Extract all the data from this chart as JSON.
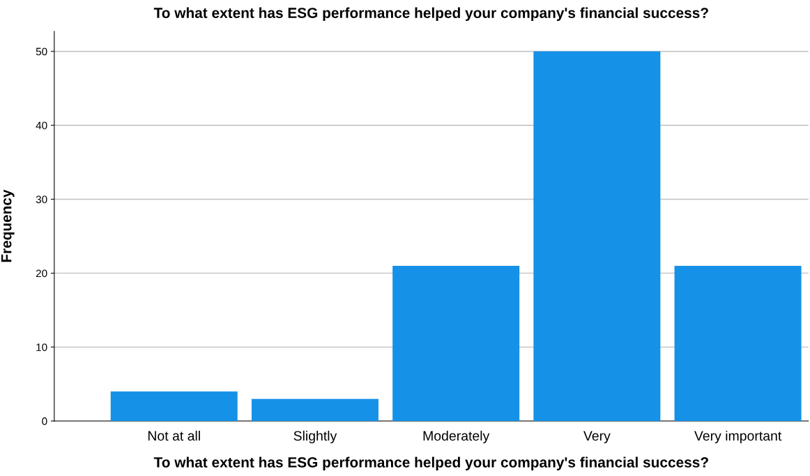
{
  "chart_data": {
    "type": "bar",
    "title": "To what extent has ESG performance helped your company's financial success?",
    "xlabel": "To what extent has ESG performance helped your company's financial success?",
    "ylabel": "Frequency",
    "categories": [
      "Not at all",
      "Slightly",
      "Moderately",
      "Very",
      "Very important"
    ],
    "values": [
      4,
      3,
      21,
      50,
      21
    ],
    "color": "#1591e8",
    "ylim": [
      0,
      52.7
    ],
    "yticks": [
      0,
      10,
      20,
      30,
      40,
      50
    ],
    "grid": "y",
    "legend": false
  }
}
